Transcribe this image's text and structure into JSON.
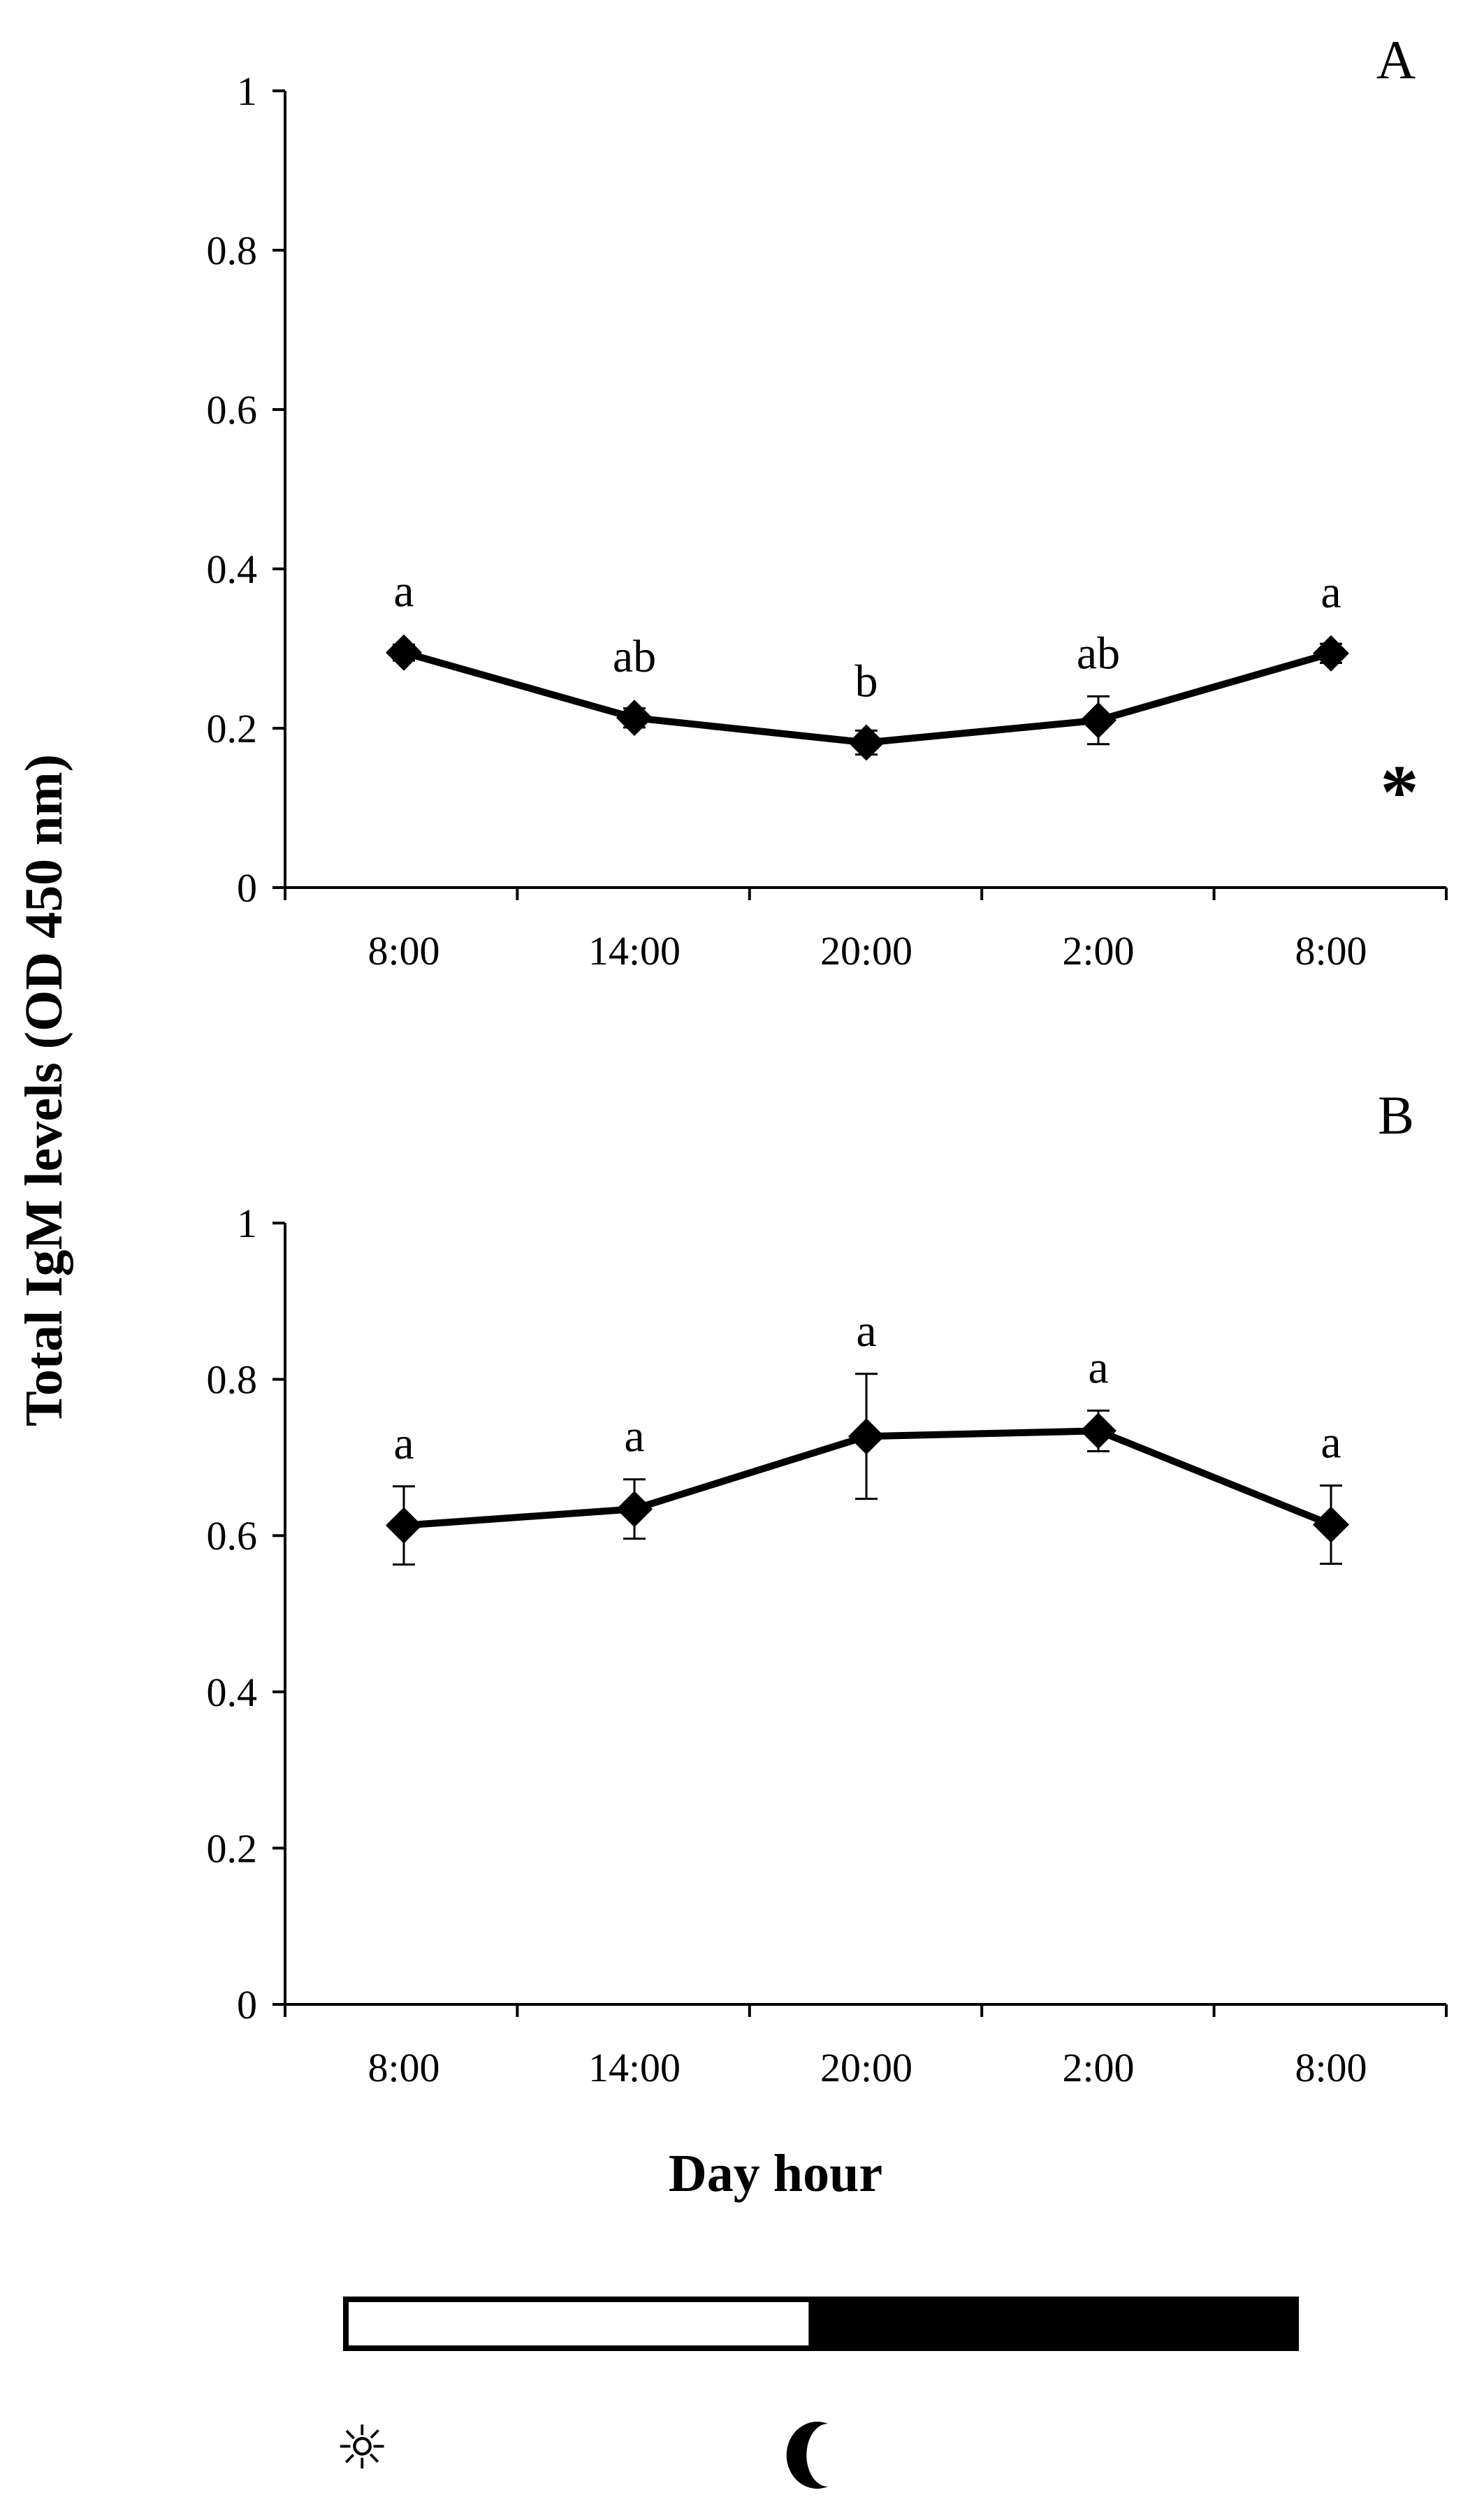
{
  "figure": {
    "ylabel": "Total IgM levels (OD 450 nm)",
    "xlabel": "Day hour",
    "asterisk": "*",
    "photoperiod": {
      "light_fraction": 0.49,
      "light_color": "#ffffff",
      "dark_color": "#000000",
      "light_icon": "sun-icon",
      "dark_icon": "moon-icon"
    }
  },
  "chart_data": [
    {
      "type": "line",
      "panel": "A",
      "categories": [
        "8:00",
        "14:00",
        "20:00",
        "2:00",
        "8:00"
      ],
      "values": [
        0.295,
        0.213,
        0.182,
        0.21,
        0.294
      ],
      "errors": [
        0.01,
        0.012,
        0.015,
        0.03,
        0.012
      ],
      "letters": [
        "a",
        "ab",
        "b",
        "ab",
        "a"
      ],
      "ylim": [
        0,
        1
      ],
      "yticks": [
        0,
        0.2,
        0.4,
        0.6,
        0.8,
        1
      ],
      "ytick_labels": [
        "0",
        "0.2",
        "0.4",
        "0.6",
        "0.8",
        "1"
      ],
      "color": "#000000"
    },
    {
      "type": "line",
      "panel": "B",
      "categories": [
        "8:00",
        "14:00",
        "20:00",
        "2:00",
        "8:00"
      ],
      "values": [
        0.613,
        0.634,
        0.727,
        0.734,
        0.614
      ],
      "errors": [
        0.05,
        0.038,
        0.08,
        0.026,
        0.05
      ],
      "letters": [
        "a",
        "a",
        "a",
        "a",
        "a"
      ],
      "ylim": [
        0,
        1
      ],
      "yticks": [
        0,
        0.2,
        0.4,
        0.6,
        0.8,
        1
      ],
      "ytick_labels": [
        "0",
        "0.2",
        "0.4",
        "0.6",
        "0.8",
        "1"
      ],
      "color": "#000000"
    }
  ]
}
